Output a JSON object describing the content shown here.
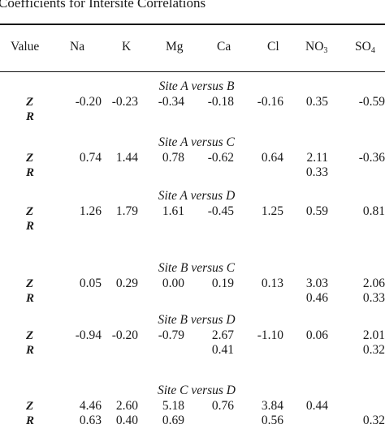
{
  "caption": "Coefficients for Intersite Correlations",
  "columns": [
    {
      "label": "Value",
      "sub": ""
    },
    {
      "label": "Na",
      "sub": ""
    },
    {
      "label": "K",
      "sub": ""
    },
    {
      "label": "Mg",
      "sub": ""
    },
    {
      "label": "Ca",
      "sub": ""
    },
    {
      "label": "Cl",
      "sub": ""
    },
    {
      "label": "NO",
      "sub": "3"
    },
    {
      "label": "SO",
      "sub": "4"
    }
  ],
  "sections": [
    {
      "title": "Site A versus B",
      "rows": [
        {
          "label": "Z",
          "values": [
            "-0.20",
            "-0.23",
            "-0.34",
            "-0.18",
            "-0.16",
            "0.35",
            "-0.59"
          ]
        },
        {
          "label": "R",
          "values": [
            "",
            "",
            "",
            "",
            "",
            "",
            ""
          ]
        }
      ]
    },
    {
      "title": "Site A versus C",
      "rows": [
        {
          "label": "Z",
          "values": [
            "0.74",
            "1.44",
            "0.78",
            "-0.62",
            "0.64",
            "2.11",
            "-0.36"
          ]
        },
        {
          "label": "R",
          "values": [
            "",
            "",
            "",
            "",
            "",
            "0.33",
            ""
          ]
        }
      ]
    },
    {
      "title": "Site A versus D",
      "rows": [
        {
          "label": "Z",
          "values": [
            "1.26",
            "1.79",
            "1.61",
            "-0.45",
            "1.25",
            "0.59",
            "0.81"
          ]
        },
        {
          "label": "R",
          "values": [
            "",
            "",
            "",
            "",
            "",
            "",
            ""
          ]
        }
      ]
    },
    {
      "title": "Site B versus C",
      "rows": [
        {
          "label": "Z",
          "values": [
            "0.05",
            "0.29",
            "0.00",
            "0.19",
            "0.13",
            "3.03",
            "2.06"
          ]
        },
        {
          "label": "R",
          "values": [
            "",
            "",
            "",
            "",
            "",
            "0.46",
            "0.33"
          ]
        }
      ]
    },
    {
      "title": "Site B versus D",
      "rows": [
        {
          "label": "Z",
          "values": [
            "-0.94",
            "-0.20",
            "-0.79",
            "2.67",
            "-1.10",
            "0.06",
            "2.01"
          ]
        },
        {
          "label": "R",
          "values": [
            "",
            "",
            "",
            "0.41",
            "",
            "",
            "0.32"
          ]
        }
      ]
    },
    {
      "title": "Site C versus D",
      "rows": [
        {
          "label": "Z",
          "values": [
            "4.46",
            "2.60",
            "5.18",
            "0.76",
            "3.84",
            "0.44",
            ""
          ]
        },
        {
          "label": "R",
          "values": [
            "0.63",
            "0.40",
            "0.69",
            "",
            "0.56",
            "",
            "0.32"
          ]
        }
      ]
    }
  ]
}
